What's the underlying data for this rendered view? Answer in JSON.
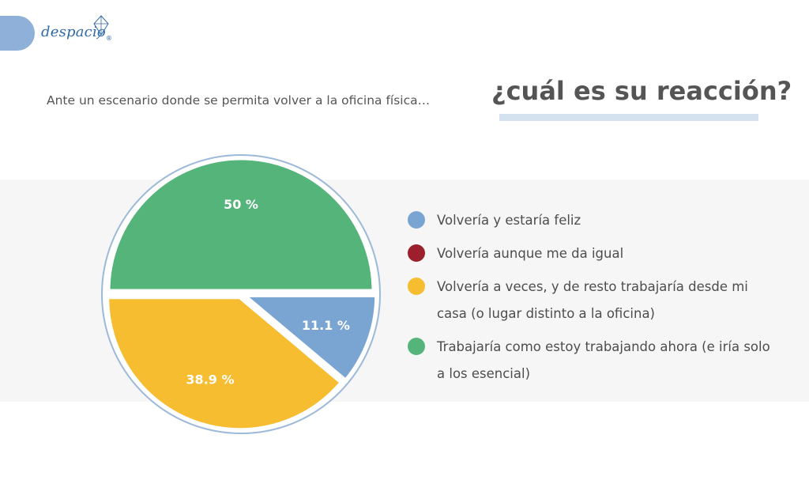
{
  "logo": {
    "text": "despacio",
    "registered": "®"
  },
  "header": {
    "intro": "Ante un escenario donde se permita volver a la oficina física…",
    "question": "¿cuál es su reacción?"
  },
  "chart_data": {
    "type": "pie",
    "title": "",
    "unit": "%",
    "slices": [
      {
        "label": "Volvería y estaría feliz",
        "value": 11.1,
        "value_label": "11.1 %",
        "color": "#7aa5d2"
      },
      {
        "label": "Volvería aunque me da igual",
        "value": 0,
        "value_label": "",
        "color": "#9c1f2e"
      },
      {
        "label": "Volvería a veces, y de resto trabajaría  desde mi casa (o lugar distinto a la oficina)",
        "value": 38.9,
        "value_label": "38.9 %",
        "color": "#f5bd2f"
      },
      {
        "label": "Trabajaría como estoy trabajando ahora (e iría solo a los esencial)",
        "value": 50,
        "value_label": "50 %",
        "color": "#55b47a"
      }
    ],
    "legend_position": "right"
  }
}
